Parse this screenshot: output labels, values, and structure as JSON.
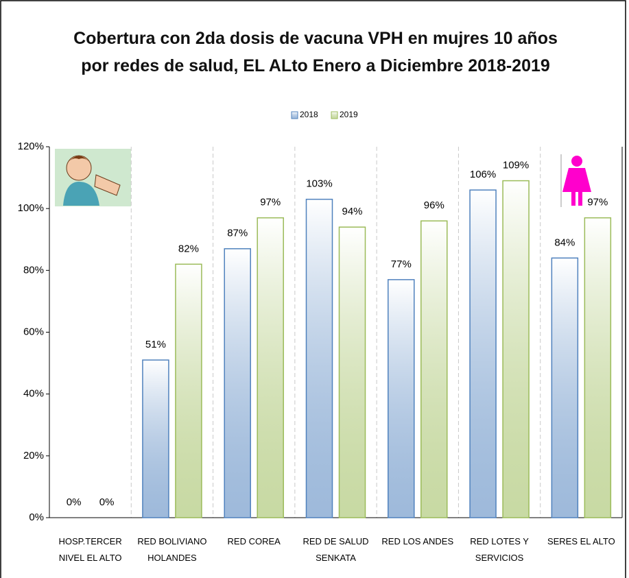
{
  "chart_data": {
    "type": "bar",
    "title": "Cobertura con 2da dosis de vacuna VPH en mujres 10 años por redes de salud, EL ALto Enero a Diciembre 2018-2019",
    "categories": [
      "HOSP.TERCER NIVEL EL ALTO",
      "RED BOLIVIANO HOLANDES",
      "RED COREA",
      "RED DE SALUD SENKATA",
      "RED LOS ANDES",
      "RED LOTES Y SERVICIOS",
      "SERES EL ALTO"
    ],
    "series": [
      {
        "name": "2018",
        "color": "#4f81bd",
        "values": [
          0,
          51,
          87,
          103,
          77,
          106,
          84
        ],
        "value_labels": [
          "0%",
          "51%",
          "87%",
          "103%",
          "77%",
          "106%",
          "84%"
        ]
      },
      {
        "name": "2019",
        "color": "#9bbb59",
        "values": [
          0,
          82,
          97,
          94,
          96,
          109,
          97
        ],
        "value_labels": [
          "0%",
          "82%",
          "97%",
          "94%",
          "96%",
          "109%",
          "97%"
        ]
      }
    ],
    "ylim": [
      0,
      120
    ],
    "yticks": [
      {
        "value": 0,
        "label": "0%"
      },
      {
        "value": 20,
        "label": "20%"
      },
      {
        "value": 40,
        "label": "40%"
      },
      {
        "value": 60,
        "label": "60%"
      },
      {
        "value": 80,
        "label": "80%"
      },
      {
        "value": 100,
        "label": "100%"
      },
      {
        "value": 120,
        "label": "120%"
      }
    ],
    "legend": "top"
  }
}
